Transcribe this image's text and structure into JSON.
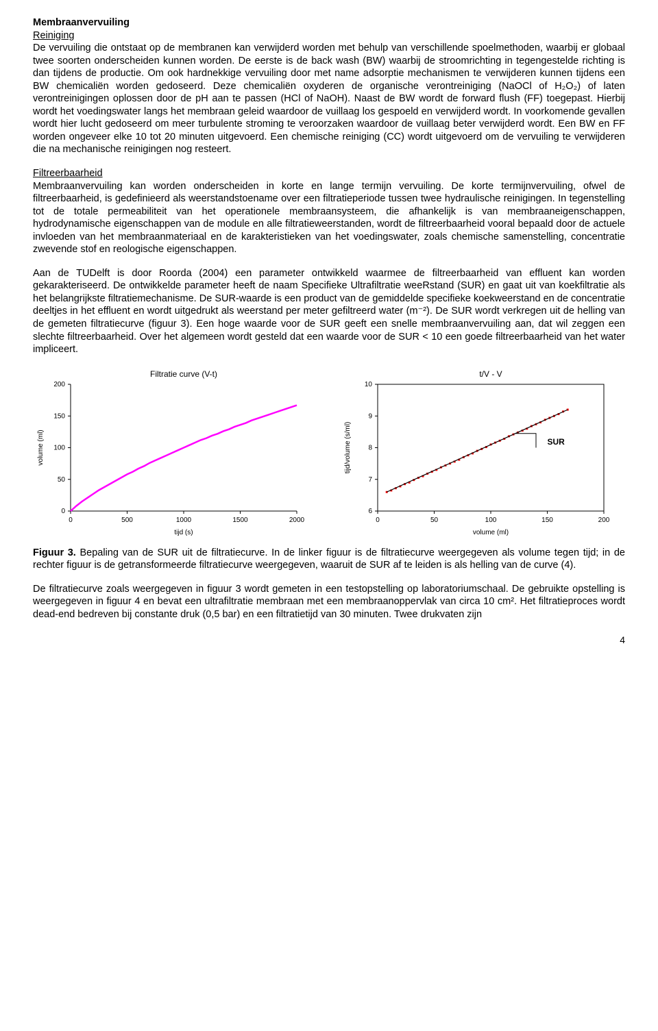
{
  "section_title": "Membraanvervuiling",
  "reiniging": {
    "heading": "Reiniging",
    "para": "De vervuiling die ontstaat op de membranen kan verwijderd worden met behulp van verschillende spoelmethoden, waarbij er globaal twee soorten onderscheiden kunnen worden. De eerste is de back wash (BW) waarbij de stroomrichting in tegengestelde richting is dan tijdens de productie. Om ook hardnekkige vervuiling door met name adsorptie mechanismen te verwijderen kunnen tijdens een BW chemicaliën worden gedoseerd. Deze chemicaliën oxyderen de organische verontreiniging (NaOCl of H₂O₂) of laten verontreinigingen oplossen door de pH aan te passen (HCl of NaOH). Naast de BW wordt de forward flush (FF) toegepast. Hierbij wordt het voedingswater langs het membraan geleid waardoor de vuillaag los gespoeld en verwijderd wordt. In voorkomende gevallen wordt hier lucht gedoseerd om meer turbulente stroming te veroorzaken waardoor de vuillaag beter verwijderd wordt. Een BW en FF worden ongeveer elke 10 tot 20 minuten uitgevoerd. Een chemische reiniging (CC) wordt uitgevoerd om de vervuiling te verwijderen die na mechanische reinigingen nog resteert."
  },
  "filtreerbaarheid": {
    "heading": "Filtreerbaarheid",
    "para1": "Membraanvervuiling kan worden onderscheiden in korte en lange termijn vervuiling. De korte termijnvervuiling, ofwel de filtreerbaarheid, is gedefinieerd als weerstandstoename over een filtratieperiode tussen twee hydraulische reinigingen. In tegenstelling tot de totale permeabiliteit van het operationele membraansysteem, die afhankelijk is van membraaneigenschappen, hydrodynamische eigenschappen van de module en alle filtratieweerstanden, wordt de filtreerbaarheid vooral bepaald door de actuele invloeden van het membraanmateriaal en de karakteristieken van het voedingswater, zoals chemische samenstelling, concentratie zwevende stof en reologische eigenschappen.",
    "para2": "Aan de TUDelft is door Roorda (2004) een parameter ontwikkeld waarmee de filtreerbaarheid van effluent kan worden gekarakteriseerd. De ontwikkelde parameter heeft de naam Specifieke Ultrafiltratie weeRstand (SUR) en gaat uit van koekfiltratie als het belangrijkste filtratiemechanisme. De SUR-waarde is een product van de gemiddelde specifieke koekweerstand en de concentratie deeltjes in het effluent en wordt uitgedrukt als weerstand per meter gefiltreerd water (m⁻²). De SUR wordt verkregen uit de helling van de gemeten filtratiecurve (figuur 3). Een hoge waarde voor de SUR geeft een snelle membraanvervuiling aan, dat wil zeggen een slechte filtreerbaarheid. Over het algemeen wordt gesteld dat een waarde voor de SUR < 10 een goede filtreerbaarheid van het water impliceert."
  },
  "chart_left": {
    "type": "line",
    "title": "Filtratie curve (V-t)",
    "xlabel": "tijd (s)",
    "ylabel": "volume (ml)",
    "xlim": [
      0,
      2000
    ],
    "ylim": [
      0,
      200
    ],
    "xticks": [
      0,
      500,
      1000,
      1500,
      2000
    ],
    "yticks": [
      0,
      50,
      100,
      150,
      200
    ],
    "line_color": "#ff00ff",
    "line_width": 2.5,
    "background_color": "#ffffff",
    "axis_color": "#000000",
    "tick_fontsize": 10,
    "label_fontsize": 10,
    "title_fontsize": 12,
    "data": [
      [
        0,
        0
      ],
      [
        50,
        8
      ],
      [
        100,
        15
      ],
      [
        150,
        21
      ],
      [
        200,
        27
      ],
      [
        250,
        33
      ],
      [
        300,
        38
      ],
      [
        350,
        43
      ],
      [
        400,
        48
      ],
      [
        450,
        53
      ],
      [
        500,
        58
      ],
      [
        550,
        62
      ],
      [
        600,
        67
      ],
      [
        650,
        71
      ],
      [
        700,
        76
      ],
      [
        750,
        80
      ],
      [
        800,
        84
      ],
      [
        850,
        88
      ],
      [
        900,
        92
      ],
      [
        950,
        96
      ],
      [
        1000,
        100
      ],
      [
        1050,
        104
      ],
      [
        1100,
        108
      ],
      [
        1150,
        112
      ],
      [
        1200,
        115
      ],
      [
        1250,
        119
      ],
      [
        1300,
        122
      ],
      [
        1350,
        126
      ],
      [
        1400,
        129
      ],
      [
        1450,
        133
      ],
      [
        1500,
        136
      ],
      [
        1550,
        139
      ],
      [
        1600,
        143
      ],
      [
        1650,
        146
      ],
      [
        1700,
        149
      ],
      [
        1750,
        152
      ],
      [
        1800,
        155
      ],
      [
        1850,
        158
      ],
      [
        1900,
        161
      ],
      [
        1950,
        164
      ],
      [
        2000,
        167
      ]
    ]
  },
  "chart_right": {
    "type": "scatter-line",
    "title": "t/V - V",
    "xlabel": "volume (ml)",
    "ylabel": "tijd/volume (s/ml)",
    "xlim": [
      0,
      200
    ],
    "ylim": [
      6,
      10
    ],
    "xticks": [
      0,
      50,
      100,
      150,
      200
    ],
    "yticks": [
      6,
      7,
      8,
      9,
      10
    ],
    "marker_color": "#ff0000",
    "marker_size": 3,
    "line_color": "#000000",
    "line_width": 1.2,
    "sur_label": "SUR",
    "sur_label_fontsize": 12,
    "background_color": "#ffffff",
    "axis_color": "#000000",
    "tick_fontsize": 10,
    "label_fontsize": 10,
    "title_fontsize": 12,
    "data": [
      [
        8,
        6.6
      ],
      [
        12,
        6.65
      ],
      [
        16,
        6.72
      ],
      [
        20,
        6.78
      ],
      [
        24,
        6.85
      ],
      [
        28,
        6.9
      ],
      [
        32,
        6.98
      ],
      [
        36,
        7.05
      ],
      [
        40,
        7.1
      ],
      [
        44,
        7.18
      ],
      [
        48,
        7.24
      ],
      [
        52,
        7.3
      ],
      [
        56,
        7.38
      ],
      [
        60,
        7.44
      ],
      [
        64,
        7.5
      ],
      [
        68,
        7.56
      ],
      [
        72,
        7.62
      ],
      [
        76,
        7.7
      ],
      [
        80,
        7.76
      ],
      [
        84,
        7.82
      ],
      [
        88,
        7.9
      ],
      [
        92,
        7.96
      ],
      [
        96,
        8.02
      ],
      [
        100,
        8.1
      ],
      [
        104,
        8.16
      ],
      [
        108,
        8.22
      ],
      [
        112,
        8.28
      ],
      [
        116,
        8.36
      ],
      [
        120,
        8.42
      ],
      [
        124,
        8.48
      ],
      [
        128,
        8.54
      ],
      [
        132,
        8.6
      ],
      [
        136,
        8.68
      ],
      [
        140,
        8.74
      ],
      [
        144,
        8.8
      ],
      [
        148,
        8.88
      ],
      [
        152,
        8.94
      ],
      [
        156,
        9.0
      ],
      [
        160,
        9.06
      ],
      [
        164,
        9.14
      ],
      [
        168,
        9.2
      ]
    ],
    "fit_line": [
      [
        8,
        6.6
      ],
      [
        168,
        9.2
      ]
    ]
  },
  "caption": {
    "lead": "Figuur 3.",
    "text": " Bepaling van de SUR uit de filtratiecurve. In de linker figuur is de filtratiecurve weergegeven als volume tegen tijd; in de rechter figuur is de getransformeerde filtratiecurve weergegeven, waaruit de SUR af te leiden is als helling van de curve (4)."
  },
  "closing_para": "De filtratiecurve zoals weergegeven in figuur 3 wordt gemeten in een testopstelling op laboratoriumschaal. De gebruikte opstelling is weergegeven in figuur 4 en bevat een ultrafiltratie membraan met een membraanoppervlak van circa 10 cm². Het filtratieproces wordt dead-end bedreven bij constante druk (0,5 bar) en een filtratietijd van 30 minuten. Twee drukvaten zijn",
  "page_number": "4"
}
